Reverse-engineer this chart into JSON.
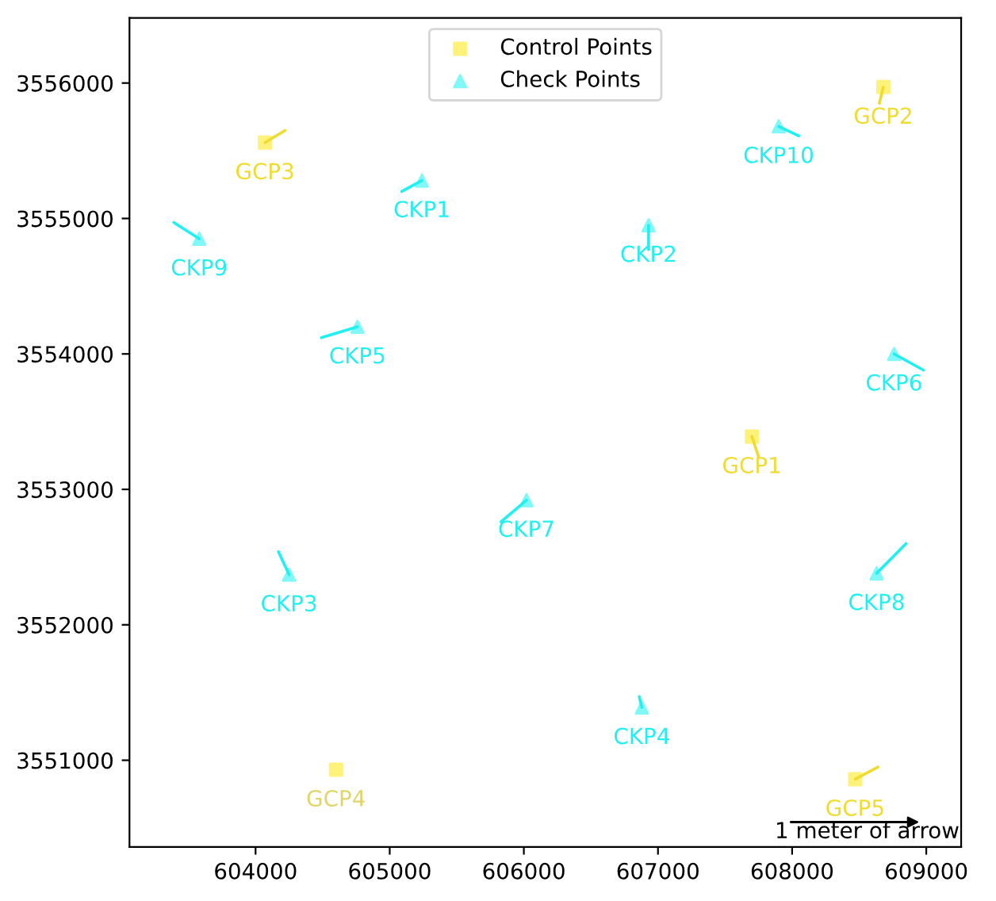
{
  "chart_data": {
    "type": "scatter",
    "xlim": [
      603060,
      609260
    ],
    "ylim": [
      3550360,
      3556480
    ],
    "xticks": [
      604000,
      605000,
      606000,
      607000,
      608000,
      609000
    ],
    "yticks": [
      3551000,
      3552000,
      3553000,
      3554000,
      3555000,
      3556000
    ],
    "grid": false,
    "legend": "top",
    "series": [
      {
        "name": "Control Points",
        "marker": "square",
        "color": "#fff27a",
        "x": [
          604070,
          608680,
          607700,
          604600,
          608470
        ],
        "values": [
          3555560,
          3555970,
          3553390,
          3550930,
          3550860
        ]
      },
      {
        "name": "Check Points",
        "marker": "triangle",
        "color": "#80f8f8",
        "x": [
          605240,
          606930,
          604250,
          606880,
          604760,
          608760,
          606020,
          608630,
          603580,
          607900
        ],
        "values": [
          3555280,
          3554950,
          3552370,
          3551390,
          3554200,
          3554000,
          3552920,
          3552380,
          3554850,
          3555680
        ]
      },
      {
        "type": "line",
        "color": "#f0dc30",
        "x": [
          604070,
          604220
        ],
        "values": [
          3555560,
          3555650
        ]
      },
      {
        "type": "line",
        "color": "#f0dc30",
        "x": [
          608680,
          608650
        ],
        "values": [
          3555970,
          3555850
        ]
      },
      {
        "type": "line",
        "color": "#f0dc30",
        "x": [
          607700,
          607750
        ],
        "values": [
          3553390,
          3553240
        ]
      },
      {
        "type": "line",
        "color": "#f0dc30",
        "x": [
          608470,
          608640
        ],
        "values": [
          3550860,
          3550950
        ]
      },
      {
        "type": "line",
        "color": "#20f0f0",
        "x": [
          605240,
          605090
        ],
        "values": [
          3555280,
          3555200
        ]
      },
      {
        "type": "line",
        "color": "#20f0f0",
        "x": [
          606930,
          606930
        ],
        "values": [
          3554950,
          3554770
        ]
      },
      {
        "type": "line",
        "color": "#20f0f0",
        "x": [
          604250,
          604170
        ],
        "values": [
          3552370,
          3552540
        ]
      },
      {
        "type": "line",
        "color": "#20f0f0",
        "x": [
          606880,
          606860
        ],
        "values": [
          3551390,
          3551470
        ]
      },
      {
        "type": "line",
        "color": "#20f0f0",
        "x": [
          604760,
          604490
        ],
        "values": [
          3554200,
          3554120
        ]
      },
      {
        "type": "line",
        "color": "#20f0f0",
        "x": [
          608760,
          608980
        ],
        "values": [
          3554000,
          3553880
        ]
      },
      {
        "type": "line",
        "color": "#20f0f0",
        "x": [
          606020,
          605830
        ],
        "values": [
          3552920,
          3552760
        ]
      },
      {
        "type": "line",
        "color": "#20f0f0",
        "x": [
          608630,
          608850
        ],
        "values": [
          3552380,
          3552600
        ]
      },
      {
        "type": "line",
        "color": "#20f0f0",
        "x": [
          603580,
          603390
        ],
        "values": [
          3554850,
          3554970
        ]
      },
      {
        "type": "line",
        "color": "#20f0f0",
        "x": [
          607900,
          608050
        ],
        "values": [
          3555680,
          3555610
        ]
      }
    ],
    "annotations": [
      {
        "text": "GCP3",
        "x": 604070,
        "y": 3555560
      },
      {
        "text": "GCP2",
        "x": 608680,
        "y": 3555970
      },
      {
        "text": "GCP1",
        "x": 607700,
        "y": 3553390
      },
      {
        "text": "GCP4",
        "x": 604600,
        "y": 3550930
      },
      {
        "text": "GCP5",
        "x": 608470,
        "y": 3550860
      },
      {
        "text": "CKP1",
        "x": 605240,
        "y": 3555280
      },
      {
        "text": "CKP2",
        "x": 606930,
        "y": 3554950
      },
      {
        "text": "CKP3",
        "x": 604250,
        "y": 3552370
      },
      {
        "text": "CKP4",
        "x": 606880,
        "y": 3551390
      },
      {
        "text": "CKP5",
        "x": 604760,
        "y": 3554200
      },
      {
        "text": "CKP6",
        "x": 608760,
        "y": 3554000
      },
      {
        "text": "CKP7",
        "x": 606020,
        "y": 3552920
      },
      {
        "text": "CKP8",
        "x": 608630,
        "y": 3552380
      },
      {
        "text": "CKP9",
        "x": 603580,
        "y": 3554850
      },
      {
        "text": "CKP10",
        "x": 607900,
        "y": 3555680
      },
      "1 meter of arrow"
    ]
  }
}
